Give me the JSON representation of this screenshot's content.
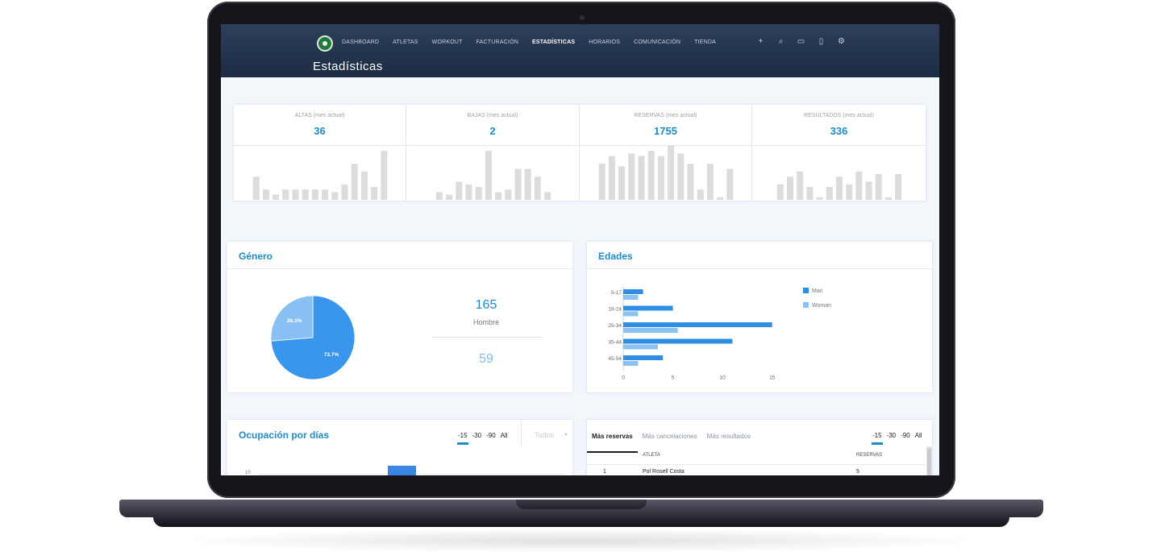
{
  "nav": {
    "items": [
      "DASHBOARD",
      "ATLETAS",
      "WORKOUT",
      "FACTURACIÓN",
      "ESTADÍSTICAS",
      "HORARIOS",
      "COMUNICACIÓN",
      "TIENDA"
    ],
    "active": "ESTADÍSTICAS",
    "tools": [
      "plus-icon",
      "search-icon",
      "monitor-icon",
      "mobile-icon",
      "gear-icon"
    ]
  },
  "page": {
    "title": "Estadísticas"
  },
  "stats": [
    {
      "label": "ALTAS (mes actual)",
      "value": "36",
      "bars": [
        9,
        4,
        2,
        4,
        4,
        4,
        4,
        4,
        3,
        6,
        14,
        11,
        5,
        19
      ]
    },
    {
      "label": "BAJAS (mes actual)",
      "value": "2",
      "bars": [
        3,
        2,
        7,
        6,
        5,
        19,
        3,
        4,
        12,
        12,
        9,
        3
      ]
    },
    {
      "label": "RESERVAS (mes actual)",
      "value": "1755",
      "bars": [
        14,
        17,
        13,
        18,
        17,
        19,
        17,
        21,
        18,
        14,
        4,
        14,
        1,
        12
      ]
    },
    {
      "label": "RESULTADOS (mes actual)",
      "value": "336",
      "bars": [
        6,
        9,
        11,
        5,
        1,
        5,
        9,
        6,
        11,
        7,
        10,
        1,
        10
      ]
    }
  ],
  "genero": {
    "title": "Género",
    "hombre_count": "165",
    "hombre_label": "Hombre",
    "mujer_count": "59",
    "slices": [
      {
        "label": "73.7%",
        "value": 73.7,
        "color": "#3a96ec"
      },
      {
        "label": "26.3%",
        "value": 26.3,
        "color": "#89c0f3"
      }
    ]
  },
  "edades": {
    "title": "Edades",
    "legend": [
      {
        "name": "Man",
        "color": "#2f8ee3"
      },
      {
        "name": "Woman",
        "color": "#8cc2f2"
      }
    ]
  },
  "chart_data": {
    "type": "bar",
    "orientation": "horizontal",
    "categories": [
      "5-17",
      "18-24",
      "25-34",
      "35-44",
      "45-54"
    ],
    "series": [
      {
        "name": "Man",
        "values": [
          2,
          5,
          15,
          11,
          4
        ]
      },
      {
        "name": "Woman",
        "values": [
          1.5,
          1.5,
          5.5,
          3.5,
          1.5
        ]
      }
    ],
    "xticks": [
      "0",
      "5",
      "10",
      "15"
    ],
    "xlim": [
      0,
      16
    ],
    "legend": "right"
  },
  "ocupacion": {
    "title": "Ocupación por días",
    "periods": [
      "-15",
      "-30",
      "-90",
      "All"
    ],
    "selected": "-15",
    "filter": "Todos",
    "ytick": "10"
  },
  "ranking": {
    "tabs": [
      "Más reservas",
      "Más cancelaciones",
      "Más resultados"
    ],
    "active_tab": "Más reservas",
    "periods": [
      "-15",
      "-30",
      "-90",
      "All"
    ],
    "selected": "-15",
    "columns": [
      "ATLETA",
      "RESERVAS"
    ],
    "rows": [
      {
        "rank": "1",
        "name": "Pol Rosell Costa",
        "reservas": "5"
      }
    ]
  }
}
